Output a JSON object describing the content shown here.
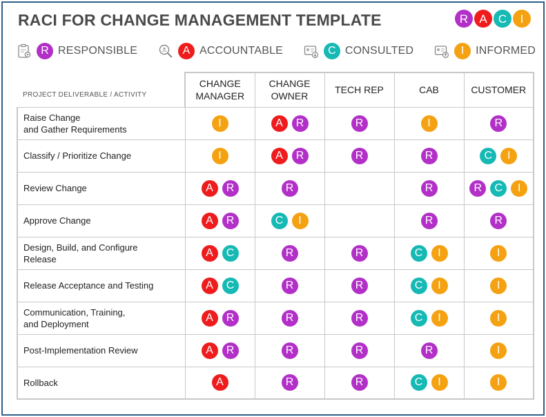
{
  "title": "RACI FOR CHANGE MANAGEMENT TEMPLATE",
  "logo_letters": [
    "R",
    "A",
    "C",
    "I"
  ],
  "legend": [
    {
      "code": "R",
      "label": "RESPONSIBLE",
      "icon": "clipboard-gear-icon"
    },
    {
      "code": "A",
      "label": "ACCOUNTABLE",
      "icon": "magnifier-person-icon"
    },
    {
      "code": "C",
      "label": "CONSULTED",
      "icon": "id-card-download-icon"
    },
    {
      "code": "I",
      "label": "INFORMED",
      "icon": "id-card-upload-icon"
    }
  ],
  "colors": {
    "R": "#b230c8",
    "A": "#ee1c1c",
    "C": "#16b9b4",
    "I": "#f5a212"
  },
  "table": {
    "corner_label": "PROJECT DELIVERABLE / ACTIVITY",
    "columns": [
      "CHANGE\nMANAGER",
      "CHANGE\nOWNER",
      "TECH REP",
      "CAB",
      "CUSTOMER"
    ],
    "rows": [
      {
        "activity": "Raise Change\nand Gather Requirements",
        "cells": [
          [
            "I"
          ],
          [
            "A",
            "R"
          ],
          [
            "R"
          ],
          [
            "I"
          ],
          [
            "R"
          ]
        ]
      },
      {
        "activity": "Classify / Prioritize Change",
        "cells": [
          [
            "I"
          ],
          [
            "A",
            "R"
          ],
          [
            "R"
          ],
          [
            "R"
          ],
          [
            "C",
            "I"
          ]
        ]
      },
      {
        "activity": "Review Change",
        "cells": [
          [
            "A",
            "R"
          ],
          [
            "R"
          ],
          [],
          [
            "R"
          ],
          [
            "R",
            "C",
            "I"
          ]
        ]
      },
      {
        "activity": "Approve Change",
        "cells": [
          [
            "A",
            "R"
          ],
          [
            "C",
            "I"
          ],
          [],
          [
            "R"
          ],
          [
            "R"
          ]
        ]
      },
      {
        "activity": "Design, Build, and Configure\nRelease",
        "cells": [
          [
            "A",
            "C"
          ],
          [
            "R"
          ],
          [
            "R"
          ],
          [
            "C",
            "I"
          ],
          [
            "I"
          ]
        ]
      },
      {
        "activity": "Release Acceptance and Testing",
        "cells": [
          [
            "A",
            "C"
          ],
          [
            "R"
          ],
          [
            "R"
          ],
          [
            "C",
            "I"
          ],
          [
            "I"
          ]
        ]
      },
      {
        "activity": "Communication, Training,\nand Deployment",
        "cells": [
          [
            "A",
            "R"
          ],
          [
            "R"
          ],
          [
            "R"
          ],
          [
            "C",
            "I"
          ],
          [
            "I"
          ]
        ]
      },
      {
        "activity": "Post-Implementation Review",
        "cells": [
          [
            "A",
            "R"
          ],
          [
            "R"
          ],
          [
            "R"
          ],
          [
            "R"
          ],
          [
            "I"
          ]
        ]
      },
      {
        "activity": "Rollback",
        "cells": [
          [
            "A"
          ],
          [
            "R"
          ],
          [
            "R"
          ],
          [
            "C",
            "I"
          ],
          [
            "I"
          ]
        ]
      }
    ]
  }
}
